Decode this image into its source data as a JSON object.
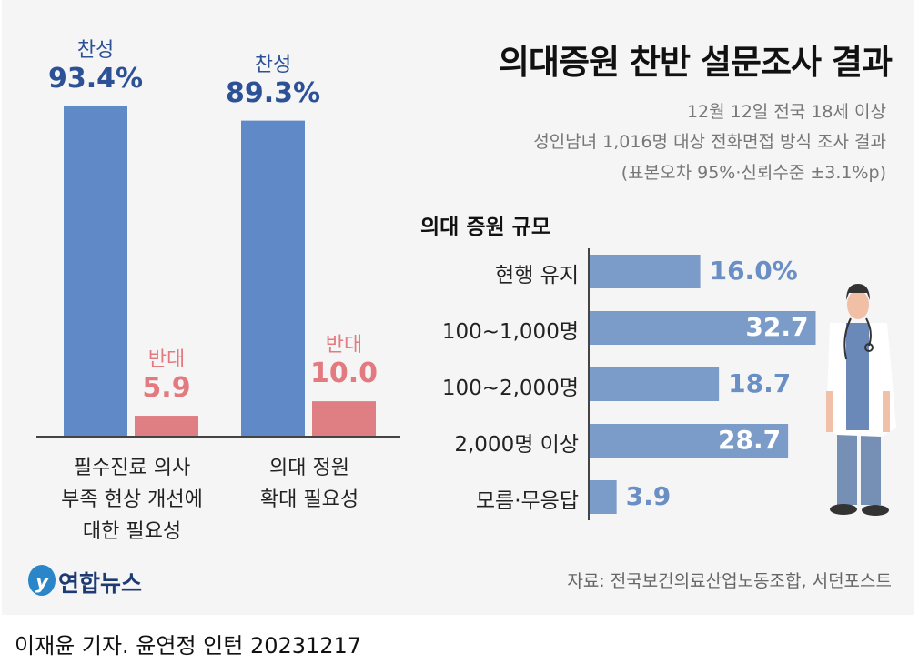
{
  "title": "의대증원 찬반 설문조사 결과",
  "subtitle_lines": [
    "12월 12일 전국 18세 이상",
    "성인남녀 1,016명 대상 전화면접 방식 조사 결과",
    "(표본오차 95%·신뢰수준 ±3.1%p)"
  ],
  "source": "자료: 전국보건의료산업노동조합, 서던포스트",
  "logo": "연합뉴스",
  "byline": "이재윤 기자. 윤연정 인턴  20231217",
  "colors": {
    "agree": "#6089c8",
    "agree_text": "#2c5196",
    "oppose": "#e07f83",
    "oppose_text": "#e27a80",
    "hbar": "#7b9cc8",
    "hbar_text": "#6a8fc4"
  },
  "chart_data": [
    {
      "type": "bar",
      "categories": [
        [
          "필수진료 의사",
          "부족 현상 개선에",
          "대한 필요성"
        ],
        [
          "의대 정원",
          "확대 필요성"
        ]
      ],
      "series": [
        {
          "name": "찬성",
          "values": [
            93.4,
            89.3
          ]
        },
        {
          "name": "반대",
          "values": [
            5.9,
            10.0
          ]
        }
      ],
      "value_labels": {
        "찬성": [
          "93.4%",
          "89.3%"
        ],
        "반대": [
          "5.9",
          "10.0"
        ]
      },
      "unit": "%"
    },
    {
      "type": "bar",
      "orientation": "horizontal",
      "title": "의대 증원 규모",
      "categories": [
        "현행 유지",
        "100~1,000명",
        "100~2,000명",
        "2,000명 이상",
        "모름·무응답"
      ],
      "values": [
        16.0,
        32.7,
        18.7,
        28.7,
        3.9
      ],
      "value_labels": [
        "16.0%",
        "32.7",
        "18.7",
        "28.7",
        "3.9"
      ]
    }
  ]
}
